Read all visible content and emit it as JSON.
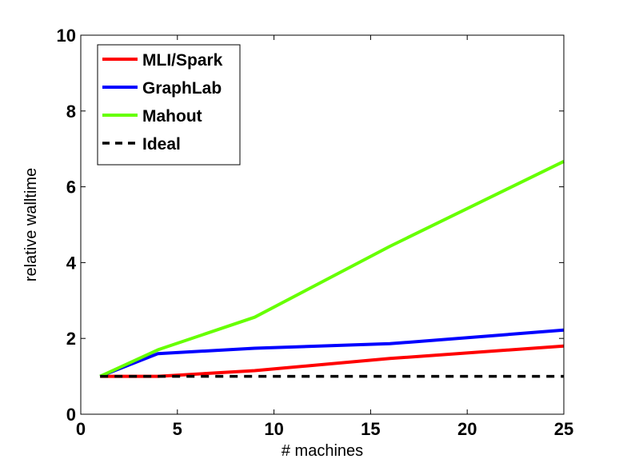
{
  "chart_data": {
    "type": "line",
    "title": "",
    "xlabel": "# machines",
    "ylabel": "relative walltime",
    "xlim": [
      0,
      25
    ],
    "ylim": [
      0,
      10
    ],
    "xticks": [
      0,
      5,
      10,
      15,
      20,
      25
    ],
    "yticks": [
      0,
      2,
      4,
      6,
      8,
      10
    ],
    "grid": false,
    "legend_position": "top-left",
    "series": [
      {
        "name": "MLI/Spark",
        "color": "#ff0000",
        "dash": "solid",
        "x": [
          1,
          4,
          9,
          16,
          25
        ],
        "y": [
          1.0,
          1.0,
          1.15,
          1.47,
          1.8
        ]
      },
      {
        "name": "GraphLab",
        "color": "#0000ff",
        "dash": "solid",
        "x": [
          1,
          4,
          9,
          16,
          25
        ],
        "y": [
          1.0,
          1.6,
          1.74,
          1.86,
          2.22
        ]
      },
      {
        "name": "Mahout",
        "color": "#66ff00",
        "dash": "solid",
        "x": [
          1,
          4,
          9,
          16,
          25
        ],
        "y": [
          1.0,
          1.7,
          2.56,
          4.43,
          6.67
        ]
      },
      {
        "name": "Ideal",
        "color": "#000000",
        "dash": "dashed",
        "x": [
          1,
          4,
          9,
          16,
          25
        ],
        "y": [
          1.0,
          1.0,
          1.0,
          1.0,
          1.0
        ]
      }
    ]
  }
}
